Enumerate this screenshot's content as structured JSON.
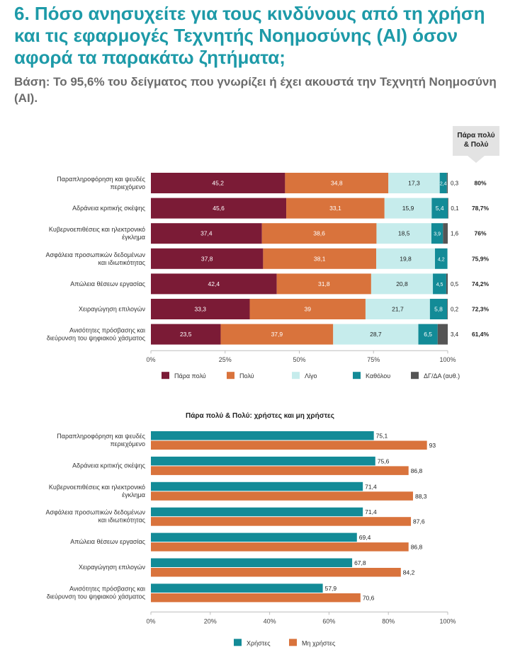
{
  "page": {
    "title": "6. Πόσο ανησυχείτε για τους κινδύνους από τη χρήση και τις εφαρμογές Τεχνητής Νοημοσύνης (AI) όσον αφορά τα παρακάτω ζητήματα;",
    "subtitle": "Βάση: Το 95,6% του δείγματος που γνωρίζει ή έχει ακουστά την Τεχνητή Νοημοσύνη (AI).",
    "callout_line1": "Πάρα πολύ",
    "callout_line2": "& Πολύ"
  },
  "colors": {
    "title": "#1d9aa8",
    "para_poly": "#7b1b36",
    "poly": "#d9733c",
    "ligo": "#c6ecec",
    "katholou": "#138b97",
    "dg": "#555555",
    "users": "#138b97",
    "non_users": "#d9733c"
  },
  "chart_data": [
    {
      "type": "bar",
      "orientation": "horizontal",
      "stacked": true,
      "categories": [
        [
          "Παραπληροφόρηση και ψευδές",
          "περιεχόμενο"
        ],
        [
          "Αδράνεια κριτικής σκέψης"
        ],
        [
          "Κυβερνοεπιθέσεις και ηλεκτρονικό",
          "έγκλημα"
        ],
        [
          "Ασφάλεια προσωπικών δεδομένων",
          "και ιδιωτικότητας"
        ],
        [
          "Απώλεια θέσεων εργασίας"
        ],
        [
          "Χειραγώγηση επιλογών"
        ],
        [
          "Ανισότητες πρόσβασης και",
          "διεύρυνση του ψηφιακού χάσματος"
        ]
      ],
      "series": [
        {
          "name": "Πάρα πολύ",
          "color": "#7b1b36",
          "values": [
            45.2,
            45.6,
            37.4,
            37.8,
            42.4,
            33.3,
            23.5
          ],
          "labels": [
            "45,2",
            "45,6",
            "37,4",
            "37,8",
            "42,4",
            "33,3",
            "23,5"
          ]
        },
        {
          "name": "Πολύ",
          "color": "#d9733c",
          "values": [
            34.8,
            33.1,
            38.6,
            38.1,
            31.8,
            39,
            37.9
          ],
          "labels": [
            "34,8",
            "33,1",
            "38,6",
            "38,1",
            "31,8",
            "39",
            "37,9"
          ]
        },
        {
          "name": "Λίγο",
          "color": "#c6ecec",
          "values": [
            17.3,
            15.9,
            18.5,
            19.8,
            20.8,
            21.7,
            28.7
          ],
          "labels": [
            "17,3",
            "15,9",
            "18,5",
            "19,8",
            "20,8",
            "21,7",
            "28,7"
          ]
        },
        {
          "name": "Καθόλου",
          "color": "#138b97",
          "values": [
            2.4,
            5.4,
            3.9,
            4.2,
            4.5,
            5.8,
            6.5
          ],
          "labels": [
            "2,4",
            "5,4",
            "3,9",
            "4,2",
            "4,5",
            "5,8",
            "6,5"
          ]
        },
        {
          "name": "ΔΓ/ΔΑ (αυθ.)",
          "color": "#555555",
          "values": [
            0.3,
            0.1,
            1.6,
            0,
            0.5,
            0.2,
            3.4
          ],
          "labels": [
            "0,3",
            "0,1",
            "1,6",
            "",
            "0,5",
            "0,2",
            "3,4"
          ]
        }
      ],
      "totals_label": [
        "80%",
        "78,7%",
        "76%",
        "75,9%",
        "74,2%",
        "72,3%",
        "61,4%"
      ],
      "xlim": [
        0,
        100
      ],
      "xticks": [
        "0%",
        "25%",
        "50%",
        "75%",
        "100%"
      ],
      "legend": "bottom"
    },
    {
      "type": "bar",
      "orientation": "horizontal",
      "title": "Πάρα πολύ & Πολύ: χρήστες και μη χρήστες",
      "categories": [
        [
          "Παραπληροφόρηση και ψευδές",
          "περιεχόμενο"
        ],
        [
          "Αδράνεια κριτικής σκέψης"
        ],
        [
          "Κυβερνοεπιθέσεις και ηλεκτρονικό",
          "έγκλημα"
        ],
        [
          "Ασφάλεια προσωπικών δεδομένων",
          "και ιδιωτικότητας"
        ],
        [
          "Απώλεια θέσεων εργασίας"
        ],
        [
          "Χειραγώγηση επιλογών"
        ],
        [
          "Ανισότητες πρόσβασης και",
          "διεύρυνση του ψηφιακού χάσματος"
        ]
      ],
      "series": [
        {
          "name": "Χρήστες",
          "color": "#138b97",
          "values": [
            75.1,
            75.6,
            71.4,
            71.4,
            69.4,
            67.8,
            57.9
          ],
          "labels": [
            "75,1",
            "75,6",
            "71,4",
            "71,4",
            "69,4",
            "67,8",
            "57,9"
          ]
        },
        {
          "name": "Μη χρήστες",
          "color": "#d9733c",
          "values": [
            93,
            86.8,
            88.3,
            87.6,
            86.8,
            84.2,
            70.6
          ],
          "labels": [
            "93",
            "86,8",
            "88,3",
            "87,6",
            "86,8",
            "84,2",
            "70,6"
          ]
        }
      ],
      "xlim": [
        0,
        100
      ],
      "xticks": [
        "0%",
        "20%",
        "40%",
        "60%",
        "80%",
        "100%"
      ],
      "legend": "bottom"
    }
  ]
}
